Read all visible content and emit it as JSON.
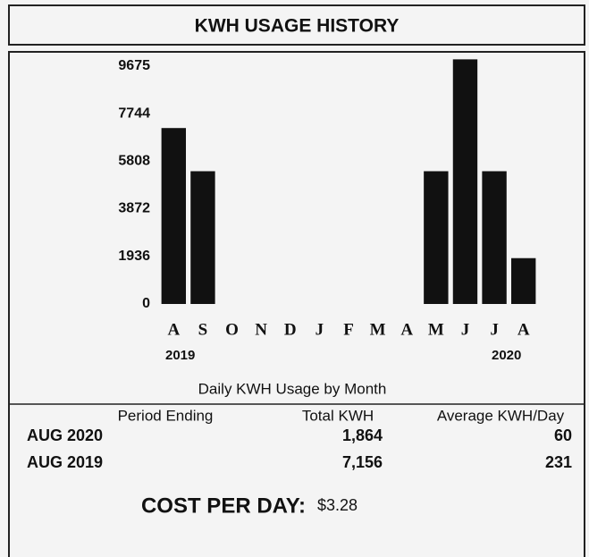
{
  "chart_data": {
    "type": "bar",
    "title": "KWH USAGE HISTORY",
    "categories": [
      "A",
      "S",
      "O",
      "N",
      "D",
      "J",
      "F",
      "M",
      "A",
      "M",
      "J",
      "J",
      "A"
    ],
    "years": [
      "2019",
      "2020"
    ],
    "values": [
      7156,
      5400,
      null,
      null,
      null,
      null,
      null,
      null,
      null,
      5400,
      9950,
      5400,
      1864
    ],
    "color": "#111111",
    "ylim": [
      0,
      10000
    ],
    "yticks": [
      0,
      1936,
      3872,
      5808,
      7744,
      9675
    ],
    "caption": "Daily KWH Usage by Month"
  },
  "table": {
    "headers": [
      "Period Ending",
      "Total KWH",
      "Average KWH/Day"
    ],
    "rows": [
      [
        "AUG 2020",
        "1,864",
        "60"
      ],
      [
        "AUG 2019",
        "7,156",
        "231"
      ]
    ]
  },
  "cost": {
    "label": "COST PER DAY:",
    "value": "$3.28"
  }
}
